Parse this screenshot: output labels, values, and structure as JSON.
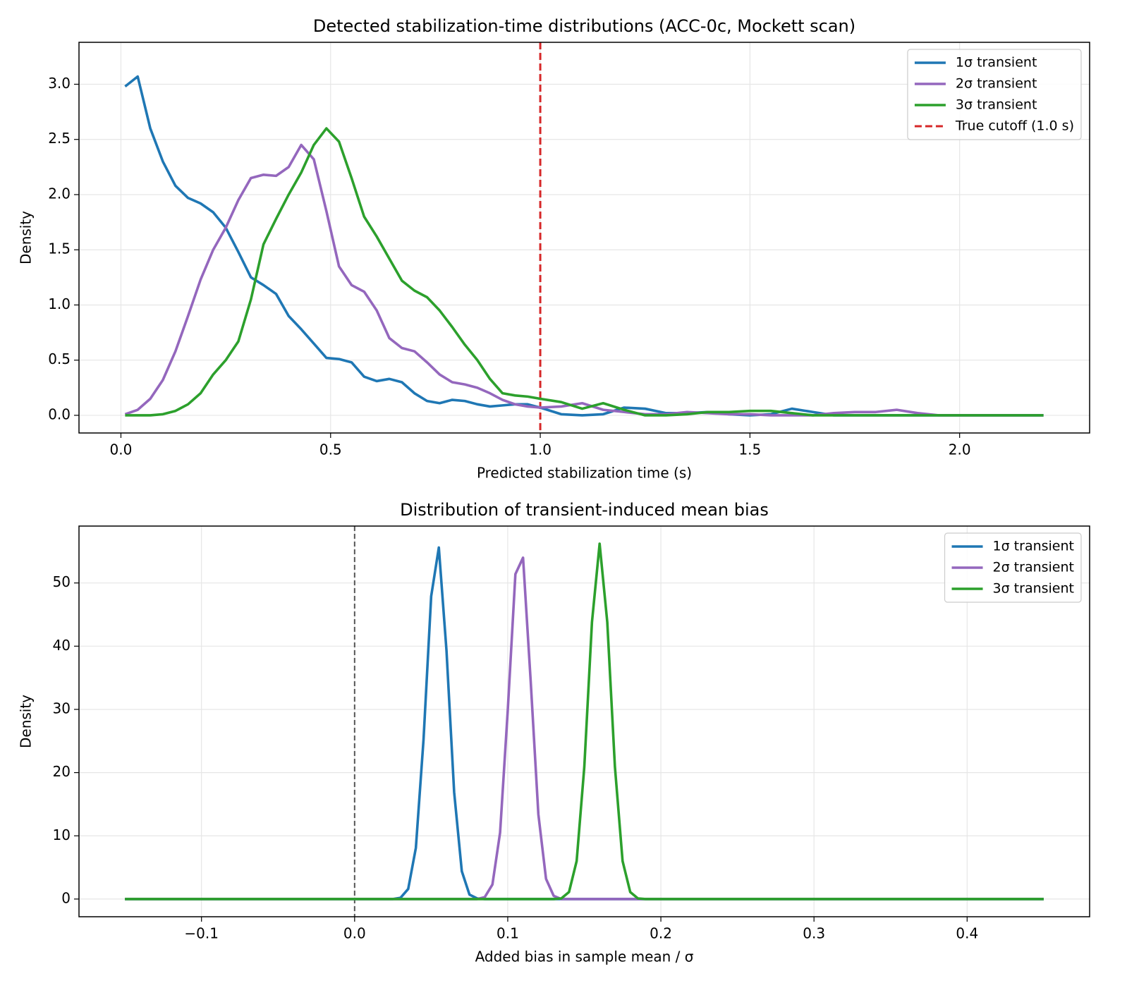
{
  "chart_data": [
    {
      "type": "line",
      "title": "Detected stabilization-time distributions (ACC-0c, Mockett scan)",
      "xlabel": "Predicted stabilization time (s)",
      "ylabel": "Density",
      "x": [
        0.01,
        0.04,
        0.07,
        0.1,
        0.13,
        0.16,
        0.19,
        0.22,
        0.25,
        0.28,
        0.31,
        0.34,
        0.37,
        0.4,
        0.43,
        0.46,
        0.49,
        0.52,
        0.55,
        0.58,
        0.61,
        0.64,
        0.67,
        0.7,
        0.73,
        0.76,
        0.79,
        0.82,
        0.85,
        0.88,
        0.91,
        0.94,
        0.97,
        1.0,
        1.05,
        1.1,
        1.15,
        1.2,
        1.25,
        1.3,
        1.35,
        1.4,
        1.45,
        1.5,
        1.55,
        1.6,
        1.65,
        1.7,
        1.75,
        1.8,
        1.85,
        1.9,
        1.95,
        2.0,
        2.05,
        2.1,
        2.15,
        2.2
      ],
      "series": [
        {
          "name": "1σ transient",
          "color": "#1f77b4",
          "values": [
            2.98,
            3.07,
            2.6,
            2.3,
            2.08,
            1.97,
            1.92,
            1.84,
            1.7,
            1.48,
            1.25,
            1.18,
            1.1,
            0.9,
            0.78,
            0.65,
            0.52,
            0.51,
            0.48,
            0.35,
            0.31,
            0.33,
            0.3,
            0.2,
            0.13,
            0.11,
            0.14,
            0.13,
            0.1,
            0.08,
            0.09,
            0.1,
            0.1,
            0.07,
            0.01,
            0,
            0.01,
            0.07,
            0.06,
            0.02,
            0.02,
            0.03,
            0.01,
            0,
            0.01,
            0.06,
            0.03,
            0,
            0,
            0,
            0,
            0,
            0,
            0,
            0,
            0,
            0,
            0
          ]
        },
        {
          "name": "2σ transient",
          "color": "#9467bd",
          "values": [
            0.01,
            0.05,
            0.15,
            0.32,
            0.58,
            0.9,
            1.23,
            1.5,
            1.7,
            1.95,
            2.15,
            2.18,
            2.17,
            2.25,
            2.45,
            2.32,
            1.85,
            1.35,
            1.18,
            1.12,
            0.95,
            0.7,
            0.61,
            0.58,
            0.48,
            0.37,
            0.3,
            0.28,
            0.25,
            0.2,
            0.14,
            0.1,
            0.08,
            0.07,
            0.08,
            0.11,
            0.05,
            0.03,
            0.01,
            0.01,
            0.03,
            0.02,
            0.01,
            0.01,
            0,
            0,
            0,
            0.02,
            0.03,
            0.03,
            0.05,
            0.02,
            0,
            0,
            0,
            0,
            0,
            0
          ]
        },
        {
          "name": "3σ transient",
          "color": "#2ca02c",
          "values": [
            0,
            0,
            0,
            0.01,
            0.04,
            0.1,
            0.2,
            0.37,
            0.5,
            0.67,
            1.05,
            1.55,
            1.78,
            2.0,
            2.2,
            2.45,
            2.6,
            2.48,
            2.15,
            1.8,
            1.62,
            1.42,
            1.22,
            1.13,
            1.07,
            0.95,
            0.8,
            0.64,
            0.5,
            0.33,
            0.2,
            0.18,
            0.17,
            0.15,
            0.12,
            0.06,
            0.11,
            0.05,
            0,
            0,
            0.01,
            0.03,
            0.03,
            0.04,
            0.04,
            0.02,
            0,
            0,
            0,
            0,
            0,
            0,
            0,
            0,
            0,
            0,
            0,
            0
          ]
        }
      ],
      "vlines": [
        {
          "name": "True cutoff (1.0 s)",
          "x": 1.0,
          "color": "#d62728"
        }
      ],
      "xlim": [
        -0.1,
        2.31
      ],
      "ylim": [
        -0.16,
        3.38
      ],
      "xticks": [
        {
          "value": 0,
          "label": "0.0"
        },
        0.5,
        {
          "value": 1,
          "label": "1.0"
        },
        1.5,
        {
          "value": 2,
          "label": "2.0"
        }
      ],
      "yticks": [
        {
          "value": 0,
          "label": "0.0"
        },
        0.5,
        {
          "value": 1,
          "label": "1.0"
        },
        1.5,
        {
          "value": 2,
          "label": "2.0"
        },
        2.5,
        {
          "value": 3,
          "label": "3.0"
        }
      ],
      "grid": true,
      "legend": "upper right"
    },
    {
      "type": "line",
      "title": "Distribution of transient-induced mean bias",
      "xlabel": "Added bias in sample mean / σ",
      "ylabel": "Density",
      "x": [
        -0.15,
        0.0,
        0.025,
        0.03,
        0.035,
        0.04,
        0.045,
        0.05,
        0.055,
        0.06,
        0.065,
        0.07,
        0.075,
        0.08,
        0.085,
        0.09,
        0.095,
        0.1,
        0.105,
        0.11,
        0.115,
        0.12,
        0.125,
        0.13,
        0.135,
        0.14,
        0.145,
        0.15,
        0.155,
        0.16,
        0.165,
        0.17,
        0.175,
        0.18,
        0.185,
        0.19,
        0.45
      ],
      "series": [
        {
          "name": "1σ transient",
          "color": "#1f77b4",
          "values": [
            0,
            0,
            0,
            0.2,
            1.6,
            8.1,
            25.2,
            47.9,
            55.6,
            39.3,
            16.9,
            4.4,
            0.7,
            0.1,
            0,
            0,
            0,
            0,
            0,
            0,
            0,
            0,
            0,
            0,
            0,
            0,
            0,
            0,
            0,
            0,
            0,
            0,
            0,
            0,
            0,
            0,
            0
          ]
        },
        {
          "name": "2σ transient",
          "color": "#9467bd",
          "values": [
            0,
            0,
            0,
            0,
            0,
            0,
            0,
            0,
            0,
            0,
            0,
            0,
            0,
            0,
            0.3,
            2.3,
            10.5,
            29.8,
            51.4,
            54.0,
            34.4,
            13.4,
            3.2,
            0.5,
            0,
            0,
            0,
            0,
            0,
            0,
            0,
            0,
            0,
            0,
            0,
            0,
            0
          ]
        },
        {
          "name": "3σ transient",
          "color": "#2ca02c",
          "values": [
            0,
            0,
            0,
            0,
            0,
            0,
            0,
            0,
            0,
            0,
            0,
            0,
            0,
            0,
            0,
            0,
            0,
            0,
            0,
            0,
            0,
            0,
            0,
            0,
            0.1,
            1.1,
            6.0,
            20.9,
            43.8,
            56.2,
            43.8,
            20.9,
            6.0,
            1.1,
            0.1,
            0,
            0
          ]
        }
      ],
      "vlines": [
        {
          "x": 0,
          "color": "#555555"
        }
      ],
      "xlim": [
        -0.18,
        0.48
      ],
      "ylim": [
        -2.8,
        59.0
      ],
      "xticks": [
        {
          "value": -0.1,
          "label": "−0.1"
        },
        {
          "value": 0,
          "label": "0.0"
        },
        0.1,
        0.2,
        0.3,
        0.4
      ],
      "yticks": [
        0,
        10,
        20,
        30,
        40,
        50
      ],
      "grid": true,
      "legend": "upper right"
    }
  ]
}
